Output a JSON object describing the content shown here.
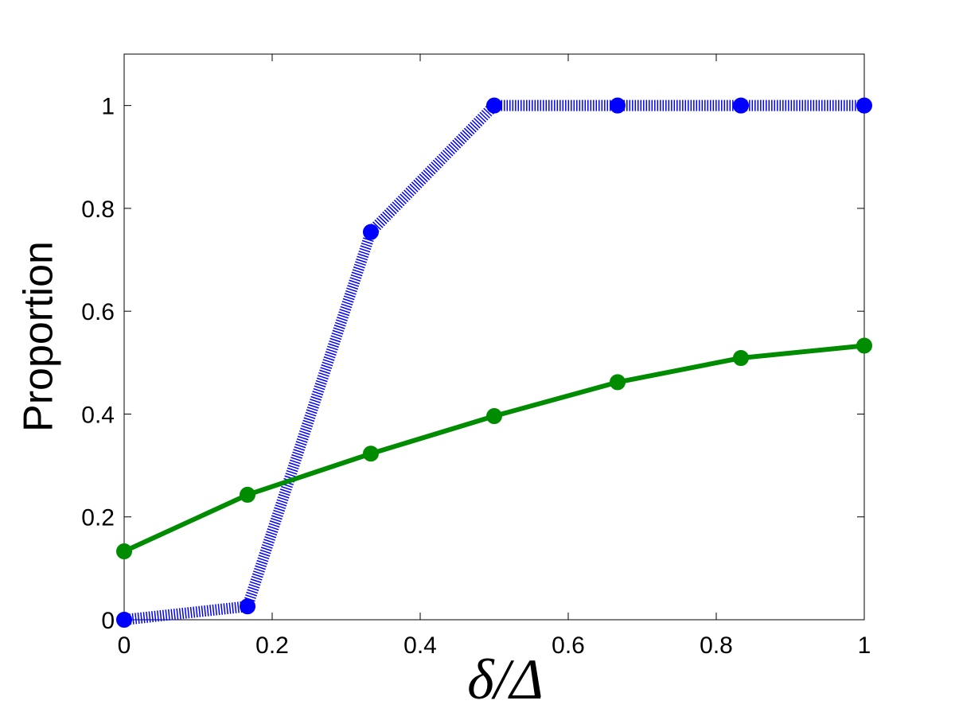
{
  "chart_data": {
    "type": "line",
    "x_label": "δ/Δ",
    "y_label": "Proportion",
    "x": [
      0,
      0.1667,
      0.3333,
      0.5,
      0.6667,
      0.8333,
      1
    ],
    "series": [
      {
        "color": "#0000ff",
        "linestyle": "dotted",
        "values": [
          0,
          0.026,
          0.754,
          1,
          1,
          1,
          1
        ]
      },
      {
        "color": "#008c00",
        "linestyle": "solid",
        "values": [
          0.133,
          0.243,
          0.323,
          0.396,
          0.462,
          0.509,
          0.533
        ]
      }
    ],
    "xlim": [
      0,
      1
    ],
    "ylim": [
      0,
      1.1
    ],
    "xticks": [
      0,
      0.2,
      0.4,
      0.6,
      0.8,
      1
    ],
    "yticks": [
      0,
      0.2,
      0.4,
      0.6,
      0.8,
      1
    ],
    "grid": false
  }
}
